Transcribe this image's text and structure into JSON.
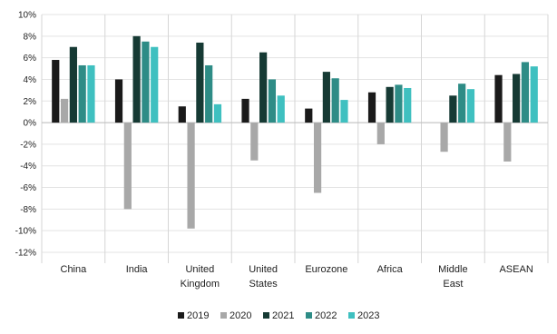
{
  "chart_data": {
    "type": "bar",
    "categories": [
      [
        "China"
      ],
      [
        "India"
      ],
      [
        "United",
        "Kingdom"
      ],
      [
        "United",
        "States"
      ],
      [
        "Eurozone"
      ],
      [
        "Africa"
      ],
      [
        "Middle",
        "East"
      ],
      [
        "ASEAN"
      ]
    ],
    "series": [
      {
        "name": "2019",
        "color": "#1a1a1a",
        "values": [
          5.8,
          4.0,
          1.5,
          2.2,
          1.3,
          2.8,
          0.0,
          4.4
        ]
      },
      {
        "name": "2020",
        "color": "#a8a8a8",
        "values": [
          2.2,
          -8.0,
          -9.8,
          -3.5,
          -6.5,
          -2.0,
          -2.7,
          -3.6
        ]
      },
      {
        "name": "2021",
        "color": "#163a34",
        "values": [
          7.0,
          8.0,
          7.4,
          6.5,
          4.7,
          3.3,
          2.5,
          4.5
        ]
      },
      {
        "name": "2022",
        "color": "#2e8c86",
        "values": [
          5.3,
          7.5,
          5.3,
          4.0,
          4.1,
          3.5,
          3.6,
          5.6
        ]
      },
      {
        "name": "2023",
        "color": "#3fc0c0",
        "values": [
          5.3,
          7.0,
          1.7,
          2.5,
          2.1,
          3.2,
          3.1,
          5.2
        ]
      }
    ],
    "yticks": [
      "10%",
      "8%",
      "6%",
      "4%",
      "2%",
      "0%",
      "-2%",
      "-4%",
      "-6%",
      "-8%",
      "-10%",
      "-12%"
    ],
    "ylim": [
      -12,
      10
    ],
    "grid": true,
    "legend_position": "bottom-center"
  }
}
